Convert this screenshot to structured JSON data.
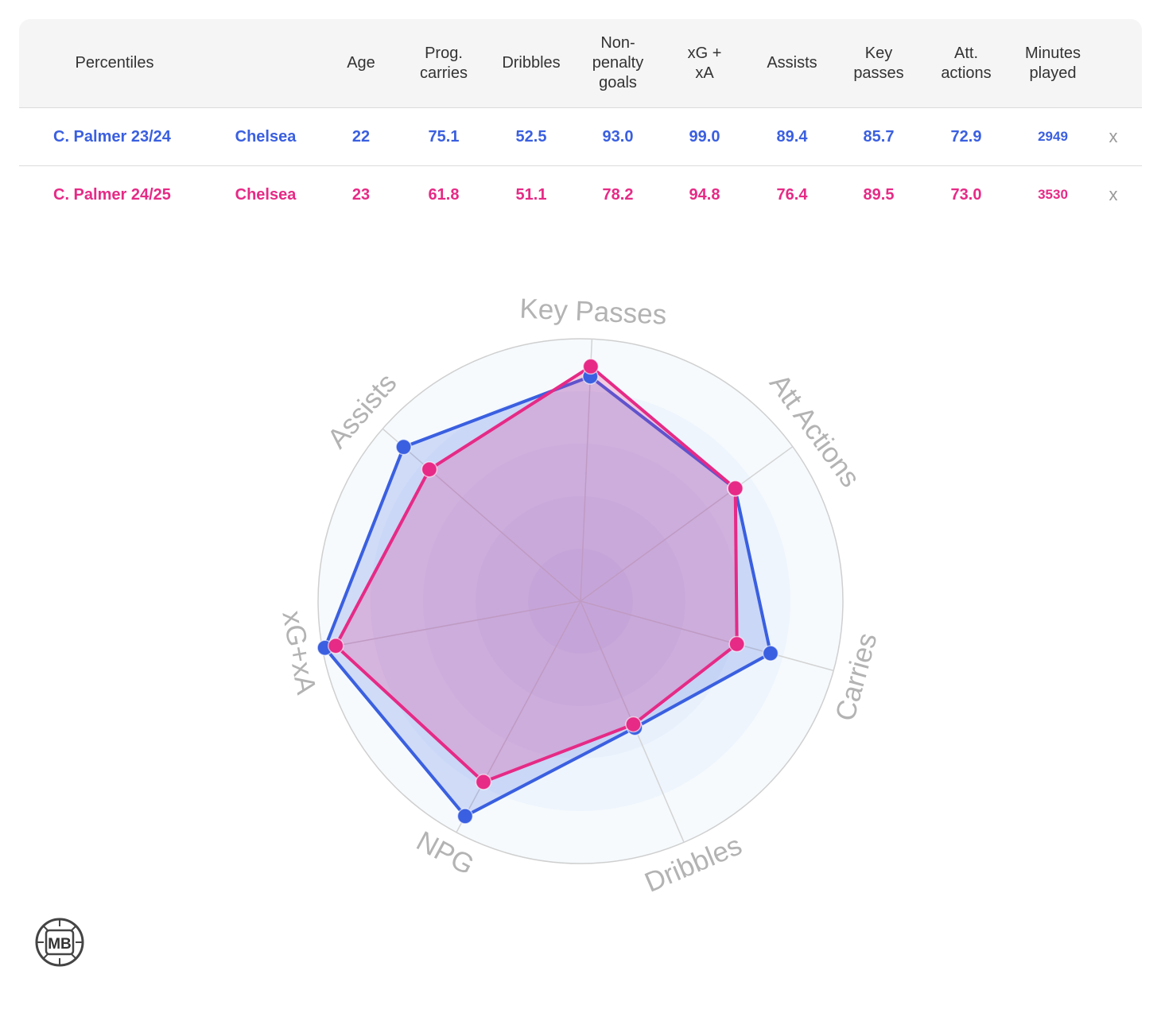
{
  "table": {
    "headers": {
      "percentiles": "Percentiles",
      "age": "Age",
      "prog_carries": "Prog.\ncarries",
      "dribbles": "Dribbles",
      "npg": "Non-\npenalty\ngoals",
      "xgxa": "xG +\nxA",
      "assists": "Assists",
      "key_passes": "Key\npasses",
      "att_actions": "Att.\nactions",
      "minutes": "Minutes\nplayed"
    },
    "rows": [
      {
        "player": "C. Palmer 23/24",
        "team": "Chelsea",
        "age": "22",
        "prog_carries": "75.1",
        "dribbles": "52.5",
        "npg": "93.0",
        "xgxa": "99.0",
        "assists": "89.4",
        "key_passes": "85.7",
        "att_actions": "72.9",
        "minutes": "2949",
        "remove": "x",
        "color": "#3a5fe0"
      },
      {
        "player": "C. Palmer 24/25",
        "team": "Chelsea",
        "age": "23",
        "prog_carries": "61.8",
        "dribbles": "51.1",
        "npg": "78.2",
        "xgxa": "94.8",
        "assists": "76.4",
        "key_passes": "89.5",
        "att_actions": "73.0",
        "minutes": "3530",
        "remove": "x",
        "color": "#e62a86"
      }
    ]
  },
  "chart_data": {
    "type": "radar",
    "axes": [
      "Key Passes",
      "Att Actions",
      "Carries",
      "Dribbles",
      "NPG",
      "xG+xA",
      "Assists"
    ],
    "range": [
      0,
      100
    ],
    "series": [
      {
        "name": "C. Palmer 23/24",
        "color": "#3a5fe0",
        "values": [
          85.7,
          72.9,
          75.1,
          52.5,
          93.0,
          99.0,
          89.4
        ]
      },
      {
        "name": "C. Palmer 24/25",
        "color": "#e62a86",
        "values": [
          89.5,
          73.0,
          61.8,
          51.1,
          78.2,
          94.8,
          76.4
        ]
      }
    ]
  },
  "logo": {
    "text": "MB"
  }
}
